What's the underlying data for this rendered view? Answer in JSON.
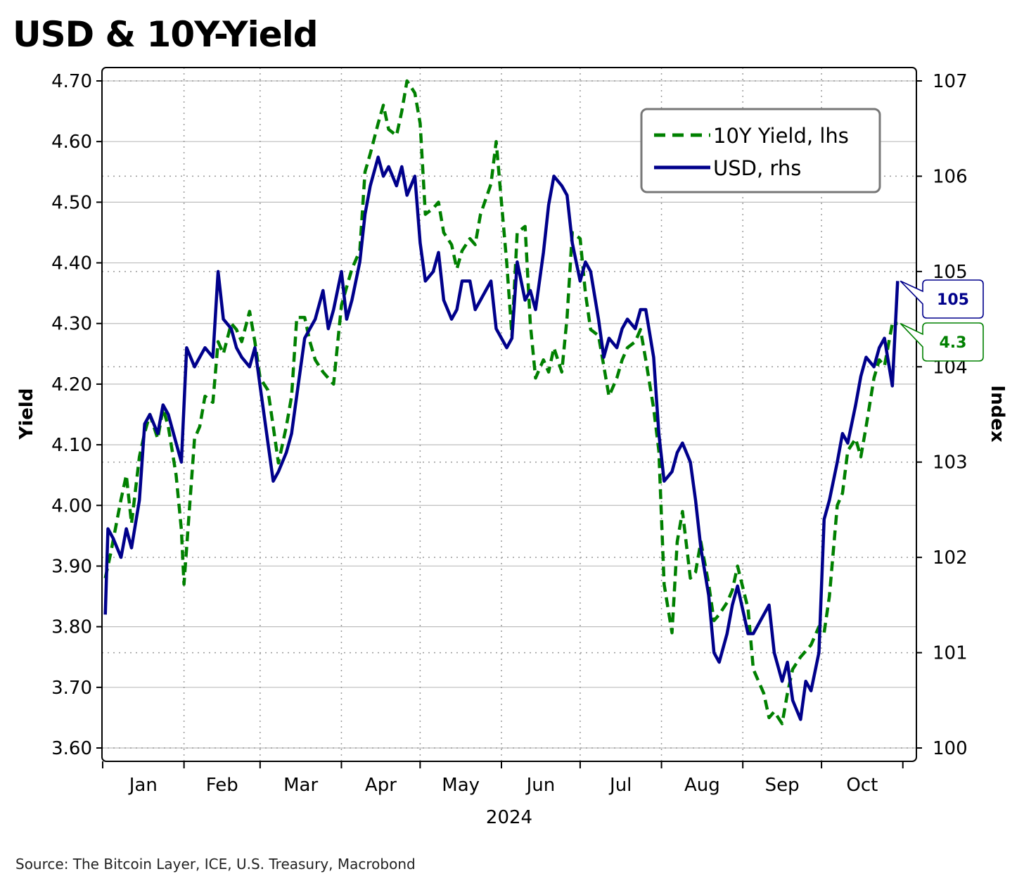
{
  "title": "USD & 10Y-Yield",
  "source": "Source: The Bitcoin Layer, ICE, U.S. Treasury, Macrobond",
  "colors": {
    "yield": "#008000",
    "usd": "#00008b",
    "grid": "#bdbdbd",
    "frame": "#000000"
  },
  "chart_data": {
    "type": "line",
    "title": "USD & 10Y-Yield",
    "xlabel": "2024",
    "ylabel_left": "Yield",
    "ylabel_right": "Index",
    "ylim_left": [
      3.6,
      4.7
    ],
    "ylim_right": [
      100,
      107
    ],
    "x_domain": [
      "2024-01-01",
      "2024-10-31"
    ],
    "month_labels": [
      "Jan",
      "Feb",
      "Mar",
      "Apr",
      "May",
      "Jun",
      "Jul",
      "Aug",
      "Sep",
      "Oct"
    ],
    "left_ticks": [
      "4.70",
      "4.60",
      "4.50",
      "4.40",
      "4.30",
      "4.20",
      "4.10",
      "4.00",
      "3.90",
      "3.80",
      "3.70",
      "3.60"
    ],
    "right_ticks": [
      "107",
      "106",
      "105",
      "104",
      "103",
      "102",
      "101",
      "100"
    ],
    "grid": true,
    "legend_position": "top-right",
    "legend": [
      {
        "label": "10Y Yield, lhs",
        "style": "dashed",
        "color": "#008000"
      },
      {
        "label": "USD, rhs",
        "style": "solid",
        "color": "#00008b"
      }
    ],
    "last_value_labels": {
      "usd": "105",
      "yield": "4.3"
    },
    "series": [
      {
        "name": "10Y Yield, lhs",
        "axis": "left",
        "x": [
          "2024-01-02",
          "2024-01-04",
          "2024-01-08",
          "2024-01-10",
          "2024-01-12",
          "2024-01-15",
          "2024-01-17",
          "2024-01-19",
          "2024-01-22",
          "2024-01-24",
          "2024-01-26",
          "2024-01-29",
          "2024-01-31",
          "2024-02-01",
          "2024-02-03",
          "2024-02-05",
          "2024-02-07",
          "2024-02-09",
          "2024-02-12",
          "2024-02-14",
          "2024-02-16",
          "2024-02-19",
          "2024-02-21",
          "2024-02-23",
          "2024-02-26",
          "2024-02-28",
          "2024-03-01",
          "2024-03-04",
          "2024-03-06",
          "2024-03-08",
          "2024-03-11",
          "2024-03-13",
          "2024-03-15",
          "2024-03-18",
          "2024-03-20",
          "2024-03-22",
          "2024-03-25",
          "2024-03-27",
          "2024-03-29",
          "2024-04-01",
          "2024-04-03",
          "2024-04-05",
          "2024-04-08",
          "2024-04-10",
          "2024-04-12",
          "2024-04-15",
          "2024-04-17",
          "2024-04-19",
          "2024-04-22",
          "2024-04-24",
          "2024-04-26",
          "2024-04-29",
          "2024-05-01",
          "2024-05-03",
          "2024-05-06",
          "2024-05-08",
          "2024-05-10",
          "2024-05-13",
          "2024-05-15",
          "2024-05-17",
          "2024-05-20",
          "2024-05-22",
          "2024-05-24",
          "2024-05-28",
          "2024-05-30",
          "2024-06-03",
          "2024-06-05",
          "2024-06-07",
          "2024-06-10",
          "2024-06-12",
          "2024-06-14",
          "2024-06-17",
          "2024-06-19",
          "2024-06-21",
          "2024-06-24",
          "2024-06-26",
          "2024-06-28",
          "2024-07-01",
          "2024-07-03",
          "2024-07-05",
          "2024-07-08",
          "2024-07-10",
          "2024-07-12",
          "2024-07-15",
          "2024-07-17",
          "2024-07-19",
          "2024-07-22",
          "2024-07-24",
          "2024-07-26",
          "2024-07-29",
          "2024-07-31",
          "2024-08-02",
          "2024-08-05",
          "2024-08-07",
          "2024-08-09",
          "2024-08-12",
          "2024-08-14",
          "2024-08-16",
          "2024-08-19",
          "2024-08-21",
          "2024-08-23",
          "2024-08-26",
          "2024-08-28",
          "2024-08-30",
          "2024-09-03",
          "2024-09-05",
          "2024-09-09",
          "2024-09-11",
          "2024-09-13",
          "2024-09-16",
          "2024-09-18",
          "2024-09-20",
          "2024-09-23",
          "2024-09-25",
          "2024-09-27",
          "2024-09-30",
          "2024-10-02",
          "2024-10-04",
          "2024-10-07",
          "2024-10-09",
          "2024-10-11",
          "2024-10-14",
          "2024-10-16",
          "2024-10-18",
          "2024-10-21",
          "2024-10-23",
          "2024-10-25",
          "2024-10-28",
          "2024-10-30"
        ],
        "y": [
          3.88,
          3.92,
          4.01,
          4.05,
          3.97,
          4.08,
          4.12,
          4.15,
          4.11,
          4.16,
          4.13,
          4.05,
          3.96,
          3.87,
          3.99,
          4.11,
          4.13,
          4.18,
          4.17,
          4.27,
          4.25,
          4.3,
          4.29,
          4.27,
          4.32,
          4.27,
          4.21,
          4.19,
          4.13,
          4.07,
          4.13,
          4.18,
          4.31,
          4.31,
          4.27,
          4.24,
          4.22,
          4.21,
          4.2,
          4.33,
          4.36,
          4.39,
          4.42,
          4.55,
          4.58,
          4.63,
          4.66,
          4.62,
          4.61,
          4.65,
          4.7,
          4.68,
          4.63,
          4.48,
          4.49,
          4.5,
          4.45,
          4.43,
          4.39,
          4.42,
          4.44,
          4.43,
          4.48,
          4.53,
          4.6,
          4.4,
          4.28,
          4.45,
          4.46,
          4.3,
          4.21,
          4.24,
          4.22,
          4.26,
          4.22,
          4.31,
          4.45,
          4.44,
          4.35,
          4.29,
          4.28,
          4.23,
          4.18,
          4.21,
          4.24,
          4.26,
          4.27,
          4.29,
          4.24,
          4.16,
          4.09,
          3.87,
          3.79,
          3.94,
          3.99,
          3.88,
          3.89,
          3.94,
          3.87,
          3.81,
          3.82,
          3.84,
          3.86,
          3.9,
          3.83,
          3.73,
          3.69,
          3.65,
          3.66,
          3.64,
          3.69,
          3.73,
          3.75,
          3.76,
          3.77,
          3.8,
          3.79,
          3.85,
          4.0,
          4.02,
          4.09,
          4.11,
          4.08,
          4.13,
          4.21,
          4.24,
          4.23,
          4.3,
          4.3
        ]
      },
      {
        "name": "USD, rhs",
        "axis": "right",
        "x": [
          "2024-01-02",
          "2024-01-03",
          "2024-01-05",
          "2024-01-08",
          "2024-01-10",
          "2024-01-12",
          "2024-01-15",
          "2024-01-17",
          "2024-01-19",
          "2024-01-22",
          "2024-01-24",
          "2024-01-26",
          "2024-01-29",
          "2024-01-31",
          "2024-02-02",
          "2024-02-05",
          "2024-02-07",
          "2024-02-09",
          "2024-02-12",
          "2024-02-14",
          "2024-02-16",
          "2024-02-19",
          "2024-02-21",
          "2024-02-23",
          "2024-02-26",
          "2024-02-28",
          "2024-03-01",
          "2024-03-04",
          "2024-03-06",
          "2024-03-08",
          "2024-03-11",
          "2024-03-13",
          "2024-03-15",
          "2024-03-18",
          "2024-03-20",
          "2024-03-22",
          "2024-03-25",
          "2024-03-27",
          "2024-03-29",
          "2024-04-01",
          "2024-04-03",
          "2024-04-05",
          "2024-04-08",
          "2024-04-10",
          "2024-04-12",
          "2024-04-15",
          "2024-04-17",
          "2024-04-19",
          "2024-04-22",
          "2024-04-24",
          "2024-04-26",
          "2024-04-29",
          "2024-05-01",
          "2024-05-03",
          "2024-05-06",
          "2024-05-08",
          "2024-05-10",
          "2024-05-13",
          "2024-05-15",
          "2024-05-17",
          "2024-05-20",
          "2024-05-22",
          "2024-05-24",
          "2024-05-28",
          "2024-05-30",
          "2024-06-03",
          "2024-06-05",
          "2024-06-07",
          "2024-06-10",
          "2024-06-12",
          "2024-06-14",
          "2024-06-17",
          "2024-06-19",
          "2024-06-21",
          "2024-06-24",
          "2024-06-26",
          "2024-06-28",
          "2024-07-01",
          "2024-07-03",
          "2024-07-05",
          "2024-07-08",
          "2024-07-10",
          "2024-07-12",
          "2024-07-15",
          "2024-07-17",
          "2024-07-19",
          "2024-07-22",
          "2024-07-24",
          "2024-07-26",
          "2024-07-29",
          "2024-07-31",
          "2024-08-02",
          "2024-08-05",
          "2024-08-07",
          "2024-08-09",
          "2024-08-12",
          "2024-08-14",
          "2024-08-16",
          "2024-08-19",
          "2024-08-21",
          "2024-08-23",
          "2024-08-26",
          "2024-08-28",
          "2024-08-30",
          "2024-09-03",
          "2024-09-05",
          "2024-09-09",
          "2024-09-11",
          "2024-09-13",
          "2024-09-16",
          "2024-09-18",
          "2024-09-20",
          "2024-09-23",
          "2024-09-25",
          "2024-09-27",
          "2024-09-30",
          "2024-10-02",
          "2024-10-04",
          "2024-10-07",
          "2024-10-09",
          "2024-10-11",
          "2024-10-14",
          "2024-10-16",
          "2024-10-18",
          "2024-10-21",
          "2024-10-23",
          "2024-10-25",
          "2024-10-28",
          "2024-10-30"
        ],
        "y": [
          101.4,
          102.3,
          102.2,
          102.0,
          102.3,
          102.1,
          102.6,
          103.4,
          103.5,
          103.3,
          103.6,
          103.5,
          103.2,
          103.0,
          104.2,
          104.0,
          104.1,
          104.2,
          104.1,
          105.0,
          104.5,
          104.4,
          104.2,
          104.1,
          104.0,
          104.2,
          103.8,
          103.2,
          102.8,
          102.9,
          103.1,
          103.3,
          103.7,
          104.3,
          104.4,
          104.5,
          104.8,
          104.4,
          104.6,
          105.0,
          104.5,
          104.7,
          105.1,
          105.6,
          105.9,
          106.2,
          106.0,
          106.1,
          105.9,
          106.1,
          105.8,
          106.0,
          105.3,
          104.9,
          105.0,
          105.2,
          104.7,
          104.5,
          104.6,
          104.9,
          104.9,
          104.6,
          104.7,
          104.9,
          104.4,
          104.2,
          104.3,
          105.1,
          104.7,
          104.8,
          104.6,
          105.2,
          105.7,
          106.0,
          105.9,
          105.8,
          105.3,
          104.9,
          105.1,
          105.0,
          104.5,
          104.1,
          104.3,
          104.2,
          104.4,
          104.5,
          104.4,
          104.6,
          104.6,
          104.1,
          103.3,
          102.8,
          102.9,
          103.1,
          103.2,
          103.0,
          102.6,
          102.1,
          101.6,
          101.0,
          100.9,
          101.2,
          101.5,
          101.7,
          101.2,
          101.2,
          101.4,
          101.5,
          101.0,
          100.7,
          100.9,
          100.5,
          100.3,
          100.7,
          100.6,
          101.0,
          102.4,
          102.6,
          103.0,
          103.3,
          103.2,
          103.6,
          103.9,
          104.1,
          104.0,
          104.2,
          104.3,
          103.8,
          104.9
        ]
      }
    ]
  }
}
